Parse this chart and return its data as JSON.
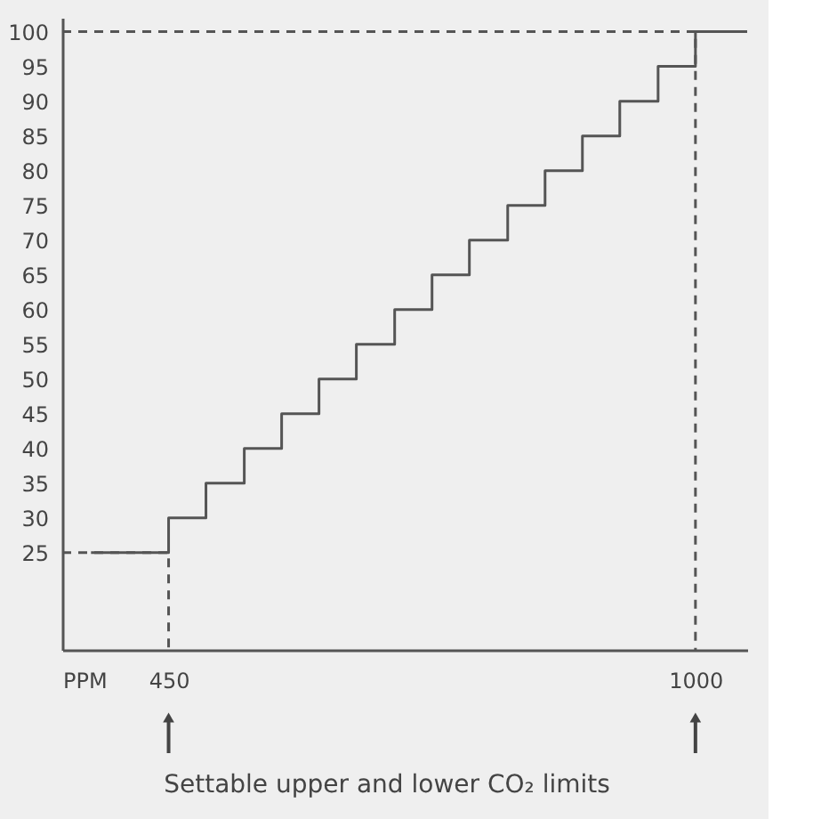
{
  "chart_data": {
    "type": "step",
    "xlabel": "PPM",
    "xlim": [
      339,
      1054
    ],
    "xticks": [
      450,
      {
        "value": 1000,
        "label": "1000"
      }
    ],
    "ylim": [
      11,
      102
    ],
    "yticks": [
      25,
      30,
      35,
      40,
      45,
      50,
      55,
      60,
      65,
      70,
      75,
      80,
      85,
      90,
      95,
      100
    ],
    "grid": false,
    "marker": "none",
    "series": [
      {
        "color": "#555555",
        "line_style": "solid",
        "x": [
          369,
          450,
          489,
          529,
          568,
          607,
          646,
          686,
          725,
          764,
          804,
          843,
          882,
          921,
          961,
          1000,
          1054
        ],
        "values": [
          25,
          30,
          35,
          40,
          45,
          50,
          55,
          60,
          65,
          70,
          75,
          80,
          85,
          90,
          95,
          100,
          100
        ]
      },
      {
        "type": "line",
        "color": "#555555",
        "line_style": "dashed",
        "x": [
          339,
          450,
          450
        ],
        "values": [
          25,
          25,
          11
        ]
      },
      {
        "type": "line",
        "color": "#555555",
        "line_style": "dashed",
        "x": [
          339,
          1000,
          1000
        ],
        "values": [
          100,
          100,
          11
        ]
      }
    ],
    "annotations": [
      "Settable upper and lower CO₂ limits"
    ]
  }
}
